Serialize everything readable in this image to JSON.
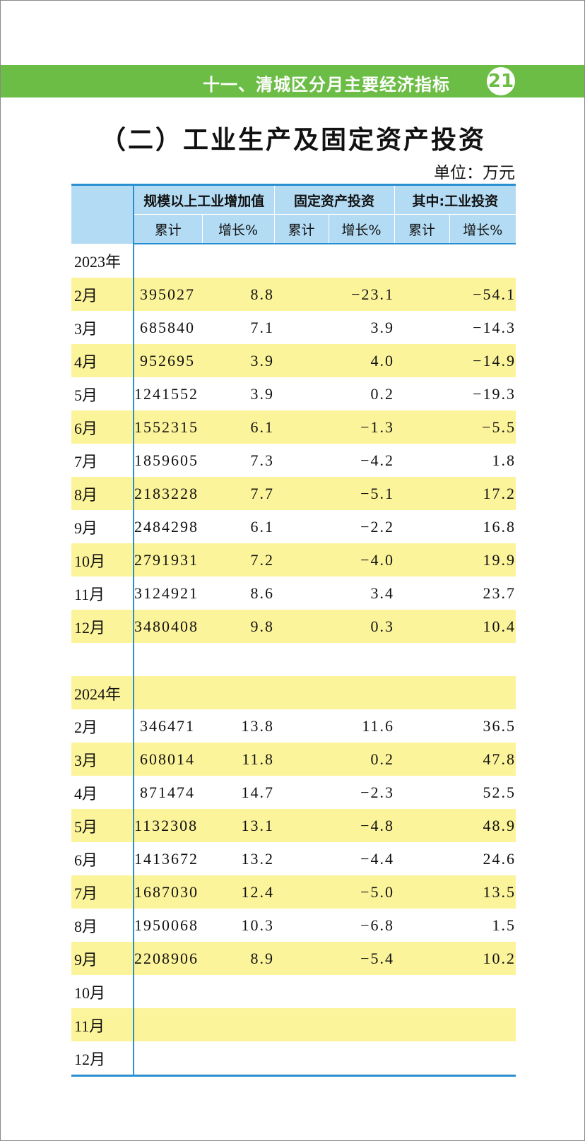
{
  "header": {
    "section": "十一、清城区分月主要经济指标",
    "page": "21"
  },
  "title": "（二）工业生产及固定资产投资",
  "unit": "单位：万元",
  "table": {
    "groups": [
      "规模以上工业增加值",
      "固定资产投资",
      "其中:工业投资"
    ],
    "subheaders": [
      "累计",
      "增长%",
      "累计",
      "增长%",
      "累计",
      "增长%"
    ],
    "sections": [
      {
        "year": "2023年",
        "rows": [
          [
            "2月",
            "395027",
            "8.8",
            "−23.1",
            "−54.1"
          ],
          [
            "3月",
            "685840",
            "7.1",
            "3.9",
            "−14.3"
          ],
          [
            "4月",
            "952695",
            "3.9",
            "4.0",
            "−14.9"
          ],
          [
            "5月",
            "1241552",
            "3.9",
            "0.2",
            "−19.3"
          ],
          [
            "6月",
            "1552315",
            "6.1",
            "−1.3",
            "−5.5"
          ],
          [
            "7月",
            "1859605",
            "7.3",
            "−4.2",
            "1.8"
          ],
          [
            "8月",
            "2183228",
            "7.7",
            "−5.1",
            "17.2"
          ],
          [
            "9月",
            "2484298",
            "6.1",
            "−2.2",
            "16.8"
          ],
          [
            "10月",
            "2791931",
            "7.2",
            "−4.0",
            "19.9"
          ],
          [
            "11月",
            "3124921",
            "8.6",
            "3.4",
            "23.7"
          ],
          [
            "12月",
            "3480408",
            "9.8",
            "0.3",
            "10.4"
          ]
        ]
      },
      {
        "year": "2024年",
        "rows": [
          [
            "2月",
            "346471",
            "13.8",
            "11.6",
            "36.5"
          ],
          [
            "3月",
            "608014",
            "11.8",
            "0.2",
            "47.8"
          ],
          [
            "4月",
            "871474",
            "14.7",
            "−2.3",
            "52.5"
          ],
          [
            "5月",
            "1132308",
            "13.1",
            "−4.8",
            "48.9"
          ],
          [
            "6月",
            "1413672",
            "13.2",
            "−4.4",
            "24.6"
          ],
          [
            "7月",
            "1687030",
            "12.4",
            "−5.0",
            "13.5"
          ],
          [
            "8月",
            "1950068",
            "10.3",
            "−6.8",
            "1.5"
          ],
          [
            "9月",
            "2208906",
            "8.9",
            "−5.4",
            "10.2"
          ],
          [
            "10月"
          ],
          [
            "11月"
          ],
          [
            "12月"
          ]
        ]
      }
    ]
  }
}
